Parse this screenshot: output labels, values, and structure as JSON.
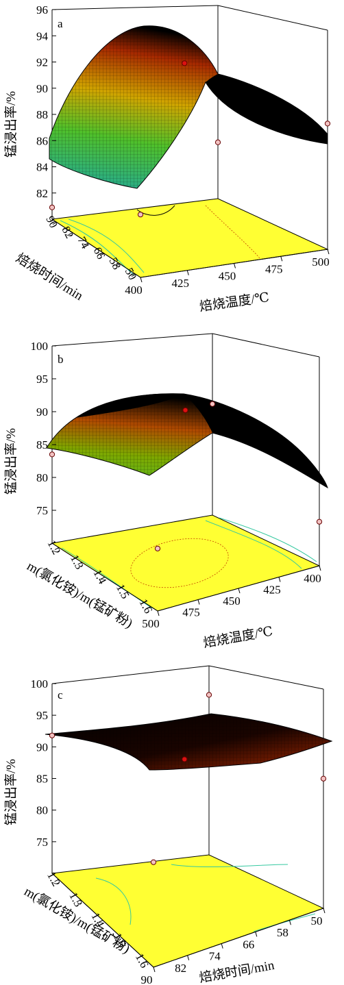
{
  "colors": {
    "surface_low": "#1fa8a0",
    "surface_mid": "#4fc02a",
    "surface_high": "#d0a400",
    "surface_top": "#a52800",
    "dark": "#000000",
    "floor": "#ffff33",
    "contour": "#35c8a0",
    "contour_red": "#c44000",
    "point": "#dd1111"
  },
  "chart_data": [
    {
      "type": "surface",
      "panel_label": "a",
      "zlabel": "锰浸出率/%",
      "xlabel": "焙烧温度/℃",
      "ylabel": "焙烧时间/min",
      "x_ticks": [
        "400",
        "425",
        "450",
        "475",
        "500"
      ],
      "y_ticks": [
        "90",
        "82",
        "74",
        "66",
        "58",
        "50"
      ],
      "z_ticks": [
        "82",
        "84",
        "86",
        "88",
        "90",
        "92",
        "94",
        "96"
      ],
      "x_range": [
        400,
        500
      ],
      "y_range": [
        50,
        90
      ],
      "zlim": [
        80,
        96
      ],
      "design_points": [
        {
          "x": 400,
          "y": 90,
          "z": 84.8
        },
        {
          "x": 400,
          "y": 50,
          "z": 80.9
        },
        {
          "x": 450,
          "y": 70,
          "z": 93.2
        },
        {
          "x": 500,
          "y": 90,
          "z": 89.6
        },
        {
          "x": 500,
          "y": 50,
          "z": 84.3
        }
      ]
    },
    {
      "type": "surface",
      "panel_label": "b",
      "zlabel": "锰浸出率/%",
      "xlabel": "焙烧温度/℃",
      "ylabel": "m(氯化铵)/m(锰矿粉)",
      "x_ticks": [
        "500",
        "475",
        "450",
        "425",
        "400"
      ],
      "y_ticks": [
        "1.2",
        "1.3",
        "1.4",
        "1.5",
        "1.6"
      ],
      "z_ticks": [
        "75",
        "80",
        "85",
        "90",
        "95",
        "100"
      ],
      "x_range": [
        500,
        400
      ],
      "y_range": [
        1.2,
        1.6
      ],
      "zlim": [
        70,
        100
      ],
      "design_points": [
        {
          "x": 500,
          "y": 1.2,
          "z": 83.5
        },
        {
          "x": 500,
          "y": 1.6,
          "z": 79.5
        },
        {
          "x": 450,
          "y": 1.4,
          "z": 92.6
        },
        {
          "x": 400,
          "y": 1.2,
          "z": 86.9
        },
        {
          "x": 400,
          "y": 1.6,
          "z": 76.7
        }
      ]
    },
    {
      "type": "surface",
      "panel_label": "c",
      "zlabel": "锰浸出率/%",
      "xlabel": "焙烧时间/min",
      "ylabel": "m(氯化铵)/m(锰矿粉)",
      "x_ticks": [
        "90",
        "82",
        "74",
        "66",
        "58",
        "50"
      ],
      "y_ticks": [
        "1.2",
        "1.3",
        "1.4",
        "1.5",
        "1.6"
      ],
      "z_ticks": [
        "75",
        "80",
        "85",
        "90",
        "95",
        "100"
      ],
      "x_range": [
        90,
        50
      ],
      "y_range": [
        1.2,
        1.6
      ],
      "zlim": [
        70,
        100
      ],
      "design_points": [
        {
          "x": 90,
          "y": 1.2,
          "z": 91.8
        },
        {
          "x": 90,
          "y": 1.6,
          "z": 86.6
        },
        {
          "x": 70,
          "y": 1.4,
          "z": 92.4
        },
        {
          "x": 50,
          "y": 1.2,
          "z": 95.3
        },
        {
          "x": 50,
          "y": 1.6,
          "z": 90.5
        }
      ]
    }
  ]
}
